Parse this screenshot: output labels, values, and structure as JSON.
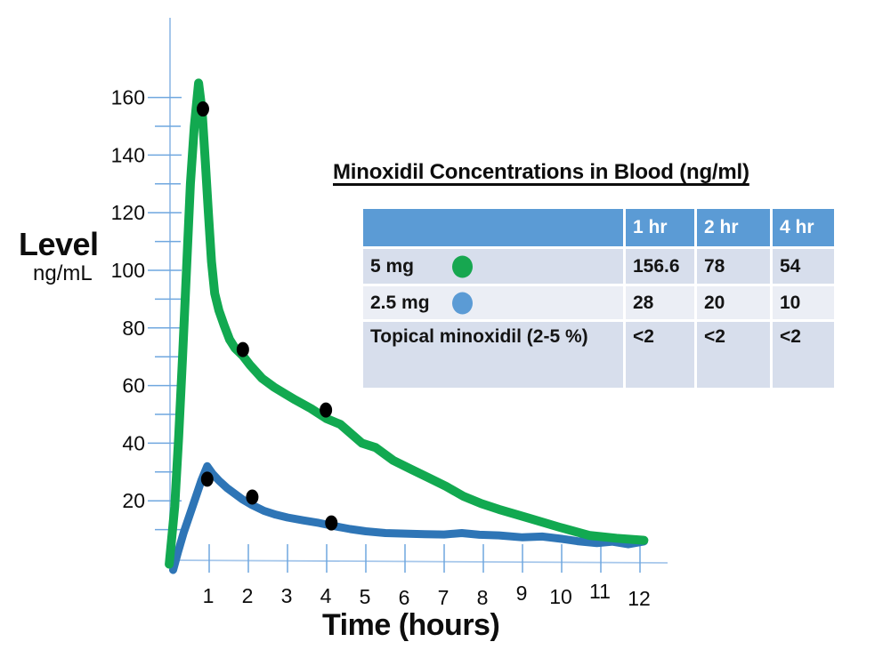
{
  "chart_data": {
    "type": "line",
    "title": "Minoxidil Concentrations in Blood (ng/ml)",
    "xlabel": "Time (hours)",
    "ylabel": "Level",
    "ylabel_units": "ng/mL",
    "xlim": [
      0,
      12.8
    ],
    "ylim": [
      0,
      175
    ],
    "grid": false,
    "legend_position": "in-table",
    "x_ticks": [
      1,
      2,
      3,
      4,
      5,
      6,
      7,
      8,
      9,
      10,
      11,
      12
    ],
    "y_ticks_labeled": [
      20,
      40,
      60,
      80,
      100,
      120,
      140,
      160
    ],
    "y_ticks_minor": [
      10,
      30,
      50,
      70,
      90,
      110,
      130,
      150
    ],
    "axis_color": "#A6C7EB",
    "tick_color": "#6FA7DF",
    "point_marker_color": "#000000",
    "series": [
      {
        "name": "5 mg",
        "color": "#12A950",
        "stroke_width": 10,
        "values_by_hour": {
          "1": 156.6,
          "2": 78,
          "4": 54
        },
        "points": [
          [
            -0.02,
            -2
          ],
          [
            0.12,
            18
          ],
          [
            0.22,
            42
          ],
          [
            0.32,
            70
          ],
          [
            0.42,
            100
          ],
          [
            0.52,
            130
          ],
          [
            0.62,
            150
          ],
          [
            0.73,
            165
          ],
          [
            0.82,
            155
          ],
          [
            0.9,
            138
          ],
          [
            0.98,
            120
          ],
          [
            1.06,
            103
          ],
          [
            1.14,
            92
          ],
          [
            1.25,
            86
          ],
          [
            1.38,
            81
          ],
          [
            1.52,
            76
          ],
          [
            1.66,
            73
          ],
          [
            1.85,
            70.5
          ],
          [
            2.05,
            67
          ],
          [
            2.35,
            62.5
          ],
          [
            2.65,
            59.5
          ],
          [
            2.95,
            57
          ],
          [
            3.2,
            55
          ],
          [
            3.6,
            52
          ],
          [
            4.0,
            48.5
          ],
          [
            4.35,
            46.5
          ],
          [
            4.9,
            40
          ],
          [
            5.25,
            38.5
          ],
          [
            5.7,
            34
          ],
          [
            6.15,
            31
          ],
          [
            6.6,
            28
          ],
          [
            7.05,
            25
          ],
          [
            7.5,
            21.5
          ],
          [
            7.95,
            19
          ],
          [
            8.4,
            17
          ],
          [
            9.15,
            14
          ],
          [
            9.95,
            10.8
          ],
          [
            10.7,
            8
          ],
          [
            11.4,
            7
          ],
          [
            12.1,
            6.3
          ]
        ],
        "marker_points": [
          [
            0.84,
            156
          ],
          [
            1.86,
            72.5
          ],
          [
            3.98,
            51.5
          ]
        ]
      },
      {
        "name": "2.5 mg",
        "color": "#2E75B6",
        "stroke_width": 9,
        "values_by_hour": {
          "1": 28,
          "2": 20,
          "4": 10
        },
        "points": [
          [
            0.08,
            -4
          ],
          [
            0.2,
            2
          ],
          [
            0.35,
            9
          ],
          [
            0.5,
            15
          ],
          [
            0.65,
            21
          ],
          [
            0.8,
            27
          ],
          [
            0.95,
            32
          ],
          [
            1.08,
            29.5
          ],
          [
            1.25,
            27
          ],
          [
            1.45,
            24.5
          ],
          [
            1.65,
            22.5
          ],
          [
            1.85,
            20.5
          ],
          [
            2.1,
            18.5
          ],
          [
            2.4,
            16.5
          ],
          [
            2.7,
            15.2
          ],
          [
            3.0,
            14.2
          ],
          [
            3.4,
            13.2
          ],
          [
            3.8,
            12.3
          ],
          [
            4.2,
            11.2
          ],
          [
            4.6,
            10.2
          ],
          [
            5.0,
            9.4
          ],
          [
            5.5,
            8.8
          ],
          [
            6.0,
            8.6
          ],
          [
            6.5,
            8.4
          ],
          [
            7.0,
            8.3
          ],
          [
            7.45,
            8.8
          ],
          [
            7.9,
            8.2
          ],
          [
            8.4,
            8.0
          ],
          [
            9.0,
            7.3
          ],
          [
            9.5,
            7.6
          ],
          [
            10.0,
            6.8
          ],
          [
            10.4,
            6.0
          ],
          [
            10.9,
            5.3
          ],
          [
            11.3,
            5.8
          ],
          [
            11.7,
            4.9
          ],
          [
            12.1,
            5.9
          ]
        ],
        "marker_points": [
          [
            0.95,
            27.5
          ],
          [
            2.1,
            21.3
          ],
          [
            4.12,
            12.3
          ]
        ]
      }
    ]
  },
  "table": {
    "header_bg": "#5B9BD5",
    "columns": [
      "",
      "1 hr",
      "2 hr",
      "4 hr"
    ],
    "rows": [
      {
        "label": "5 mg",
        "marker_color": "#17A750",
        "values": [
          "156.6",
          "78",
          "54"
        ]
      },
      {
        "label": "2.5 mg",
        "marker_color": "#5B9BD5",
        "values": [
          "28",
          "20",
          "10"
        ]
      },
      {
        "label": "Topical minoxidil (2-5 %)",
        "marker_color": "",
        "values": [
          "<2",
          "<2",
          "<2"
        ]
      }
    ]
  }
}
